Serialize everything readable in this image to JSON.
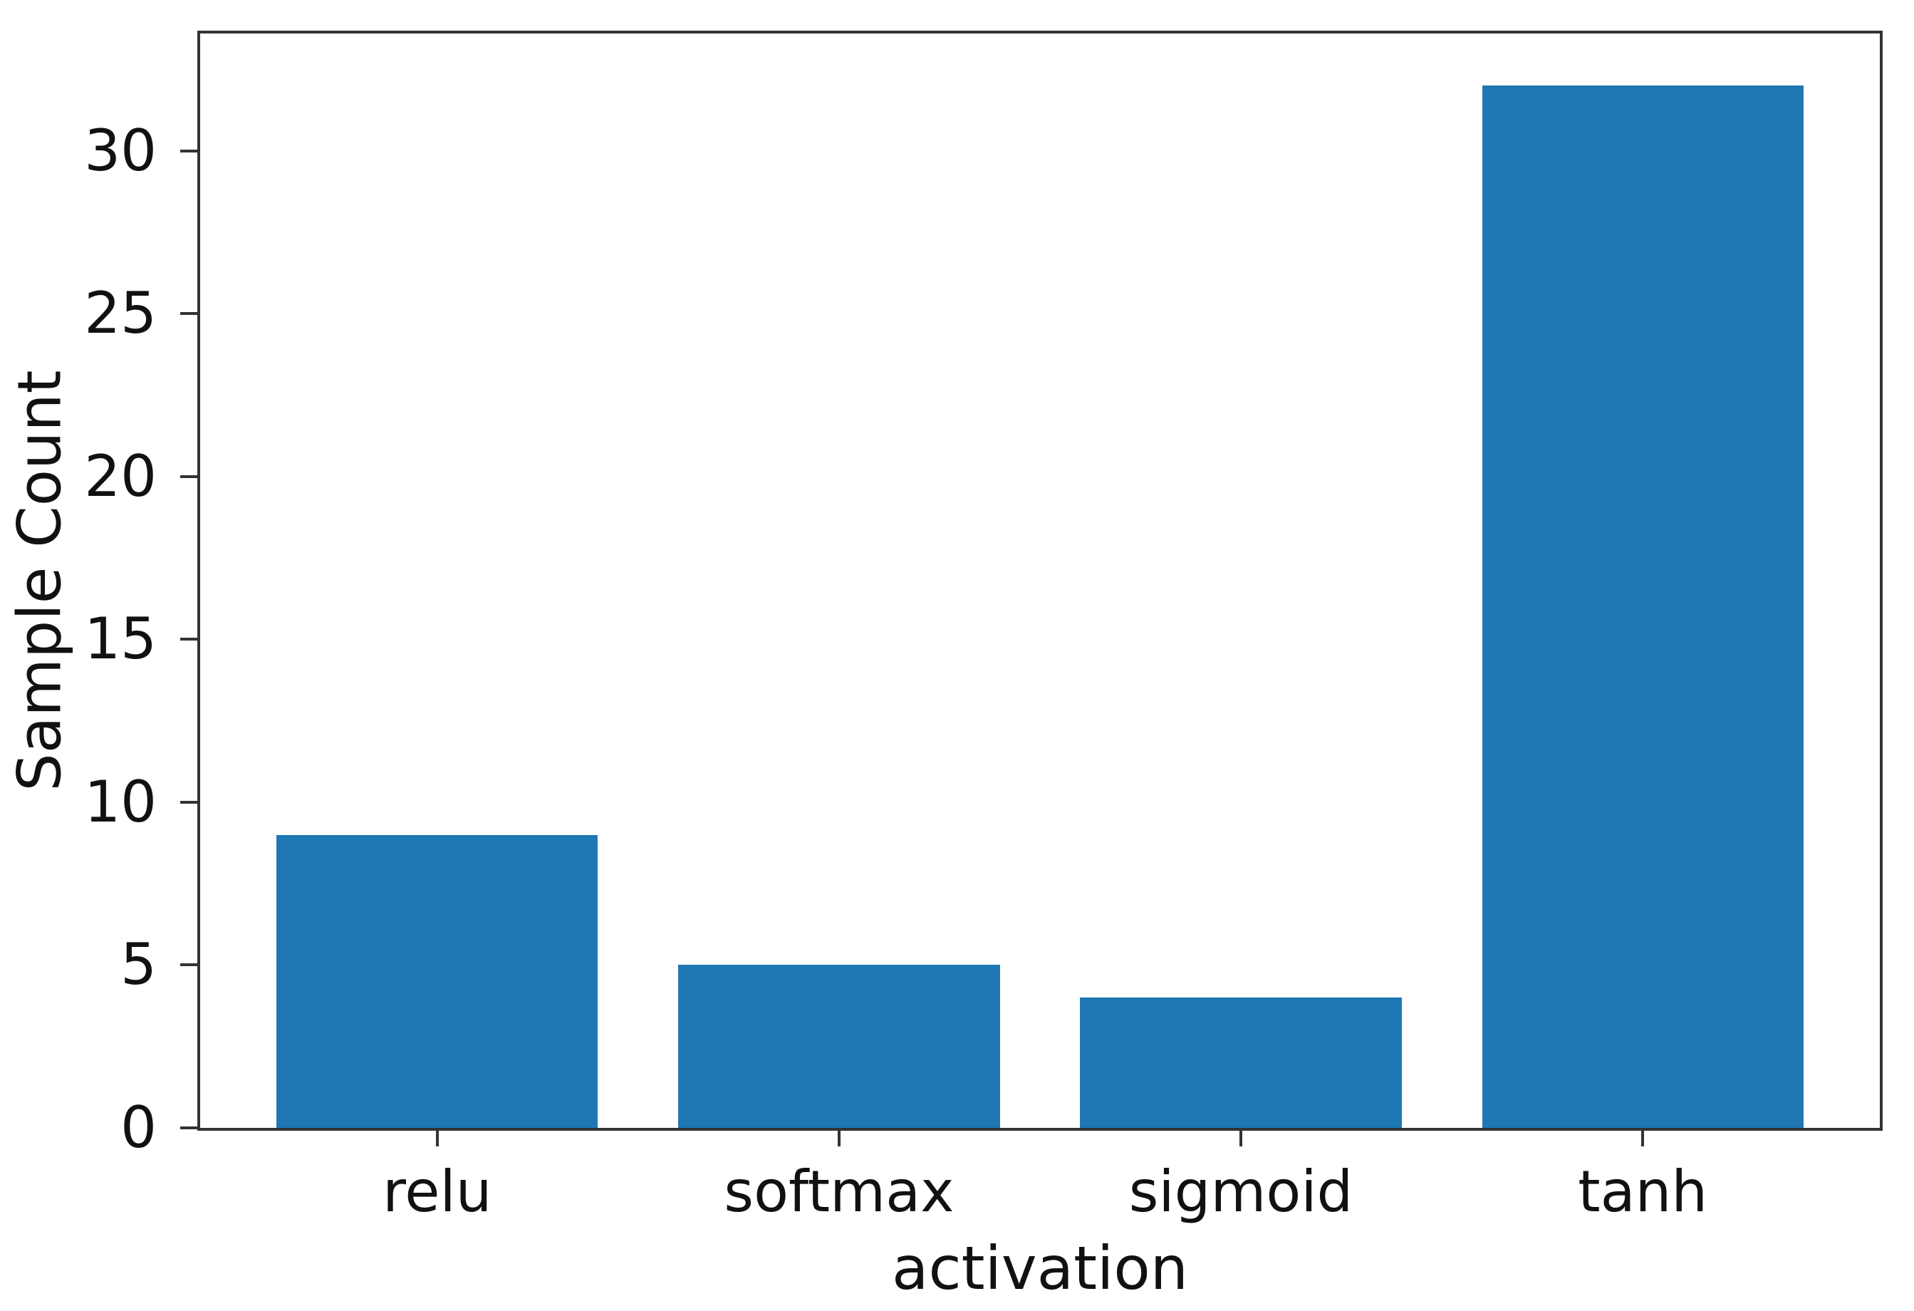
{
  "figure": {
    "background": "#ffffff"
  },
  "chart_data": {
    "type": "bar",
    "title": "",
    "categories": [
      "relu",
      "softmax",
      "sigmoid",
      "tanh"
    ],
    "values": [
      9,
      5,
      4,
      32
    ],
    "xlabel": "activation",
    "ylabel": "Sample Count",
    "yticks": [
      0,
      5,
      10,
      15,
      20,
      25,
      30
    ],
    "ylim": [
      0,
      33.6
    ],
    "xlim": [
      -0.59,
      3.59
    ],
    "bar_width": 0.8,
    "bar_color": "#1f77b4",
    "axis_color": "#333333",
    "text_color": "#111111",
    "grid": false,
    "legend": "none"
  }
}
